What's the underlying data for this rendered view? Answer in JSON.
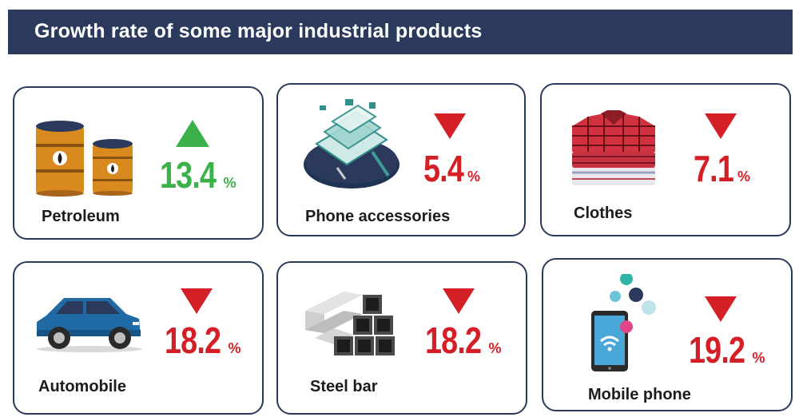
{
  "title": "Growth rate of some major industrial products",
  "colors": {
    "header_bg": "#2b3a5c",
    "border": "#2b3a5c",
    "down": "#d41f26",
    "up": "#3cb14a"
  },
  "products": [
    {
      "name": "Petroleum",
      "value": "13.4",
      "unit": "%",
      "direction": "up",
      "icon": "oil-barrels-icon"
    },
    {
      "name": "Phone accessories",
      "value": "5.4",
      "unit": "%",
      "direction": "down",
      "icon": "circuit-board-icon"
    },
    {
      "name": "Clothes",
      "value": "7.1",
      "unit": "%",
      "direction": "down",
      "icon": "shirt-stack-icon"
    },
    {
      "name": "Automobile",
      "value": "18.2",
      "unit": "%",
      "direction": "down",
      "icon": "car-icon"
    },
    {
      "name": "Steel bar",
      "value": "18.2",
      "unit": "%",
      "direction": "down",
      "icon": "steel-bars-icon"
    },
    {
      "name": "Mobile phone",
      "value": "19.2",
      "unit": "%",
      "direction": "down",
      "icon": "smartphone-icon"
    }
  ]
}
